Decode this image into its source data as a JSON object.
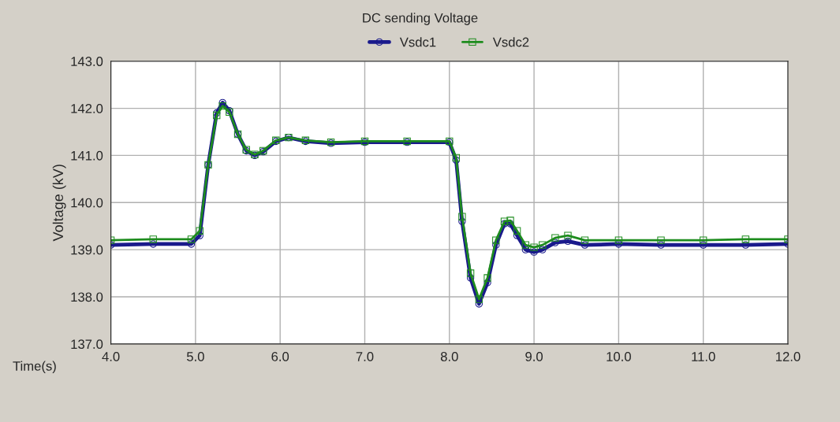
{
  "chart_data": {
    "type": "line",
    "title": "DC sending Voltage",
    "xlabel": "Time(s)",
    "ylabel": "Voltage (kV)",
    "xlim": [
      4,
      12
    ],
    "xticks": [
      {
        "value": 4,
        "label": "4.0"
      },
      {
        "value": 5,
        "label": "5.0"
      },
      {
        "value": 6,
        "label": "6.0"
      },
      {
        "value": 7,
        "label": "7.0"
      },
      {
        "value": 8,
        "label": "8.0"
      },
      {
        "value": 9,
        "label": "9.0"
      },
      {
        "value": 10,
        "label": "10.0"
      },
      {
        "value": 11,
        "label": "11.0"
      },
      {
        "value": 12,
        "label": "12.0"
      }
    ],
    "ylim": [
      137,
      143
    ],
    "yticks": [
      {
        "value": 137,
        "label": "137.0"
      },
      {
        "value": 138,
        "label": "138.0"
      },
      {
        "value": 139,
        "label": "139.0"
      },
      {
        "value": 140,
        "label": "140.0"
      },
      {
        "value": 141,
        "label": "141.0"
      },
      {
        "value": 142,
        "label": "142.0"
      },
      {
        "value": 143,
        "label": "143.0"
      }
    ],
    "grid": true,
    "legend": "top",
    "series": [
      {
        "name": "Vsdc1",
        "color": "#1a1a8c",
        "marker": "circle",
        "x": [
          4.0,
          4.5,
          4.95,
          5.05,
          5.15,
          5.25,
          5.32,
          5.4,
          5.5,
          5.6,
          5.7,
          5.8,
          5.95,
          6.1,
          6.3,
          6.6,
          7.0,
          7.5,
          8.0,
          8.08,
          8.15,
          8.25,
          8.35,
          8.45,
          8.55,
          8.65,
          8.72,
          8.8,
          8.9,
          9.0,
          9.1,
          9.25,
          9.4,
          9.6,
          10.0,
          10.5,
          11.0,
          11.5,
          12.0
        ],
        "values": [
          139.1,
          139.12,
          139.12,
          139.3,
          140.8,
          141.9,
          142.12,
          141.95,
          141.45,
          141.1,
          141.0,
          141.08,
          141.3,
          141.38,
          141.3,
          141.26,
          141.28,
          141.28,
          141.28,
          140.9,
          139.6,
          138.4,
          137.85,
          138.3,
          139.1,
          139.55,
          139.55,
          139.3,
          139.0,
          138.95,
          139.0,
          139.15,
          139.18,
          139.1,
          139.12,
          139.1,
          139.1,
          139.1,
          139.12
        ]
      },
      {
        "name": "Vsdc2",
        "color": "#1e8c1e",
        "marker": "square",
        "x": [
          4.0,
          4.5,
          4.95,
          5.05,
          5.15,
          5.25,
          5.32,
          5.4,
          5.5,
          5.6,
          5.7,
          5.8,
          5.95,
          6.1,
          6.3,
          6.6,
          7.0,
          7.5,
          8.0,
          8.08,
          8.15,
          8.25,
          8.35,
          8.45,
          8.55,
          8.65,
          8.72,
          8.8,
          8.9,
          9.0,
          9.1,
          9.25,
          9.4,
          9.6,
          10.0,
          10.5,
          11.0,
          11.5,
          12.0
        ],
        "values": [
          139.2,
          139.22,
          139.22,
          139.4,
          140.8,
          141.85,
          142.05,
          141.92,
          141.45,
          141.12,
          141.02,
          141.1,
          141.32,
          141.38,
          141.32,
          141.28,
          141.3,
          141.3,
          141.3,
          140.95,
          139.7,
          138.5,
          137.95,
          138.4,
          139.2,
          139.6,
          139.62,
          139.4,
          139.1,
          139.05,
          139.1,
          139.25,
          139.3,
          139.2,
          139.2,
          139.2,
          139.2,
          139.22,
          139.22
        ]
      }
    ]
  }
}
